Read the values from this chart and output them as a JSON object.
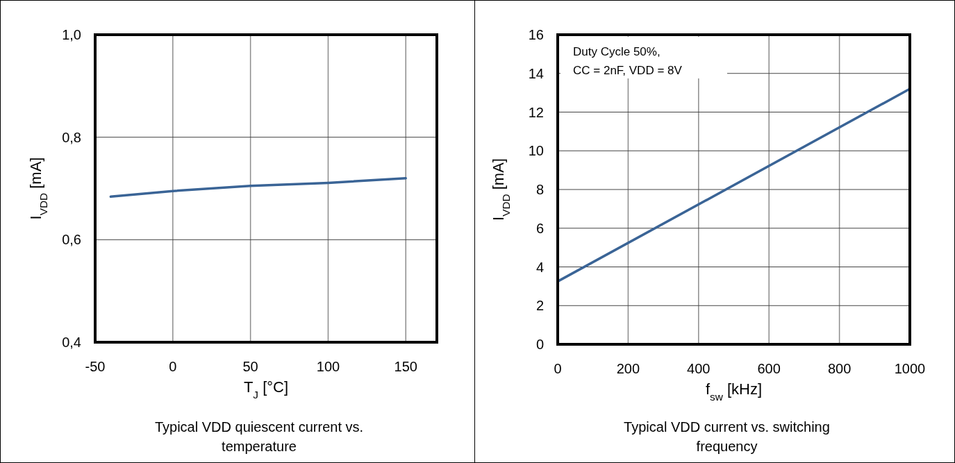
{
  "chart_data": [
    {
      "type": "line",
      "title": "Typical VDD quiescent current vs. temperature",
      "xlabel": "T$_{J}$ [°C]",
      "ylabel": "I$_{VDD}$ [mA]",
      "x": [
        -40,
        0,
        50,
        100,
        150
      ],
      "series": [
        {
          "color": "#3a6496",
          "values": [
            0.684,
            0.695,
            0.705,
            0.711,
            0.72
          ]
        }
      ],
      "xlim": [
        -50,
        170
      ],
      "xticks": [
        -50,
        0,
        50,
        100,
        150
      ],
      "ylim": [
        0.4,
        1.0
      ],
      "yticks": [
        {
          "value": 0.4,
          "label": "0,4"
        },
        {
          "value": 0.6,
          "label": "0,6"
        },
        {
          "value": 0.8,
          "label": "0,8"
        },
        {
          "value": 1.0,
          "label": "1,0"
        }
      ],
      "grid": true,
      "marker": "none",
      "line_style": "solid"
    },
    {
      "type": "line",
      "title": "Typical VDD current vs. switching frequency",
      "xlabel": "f$_{sw}$ [kHz]",
      "ylabel": "I$_{VDD}$ [mA]",
      "annotations": [
        "Duty Cycle 50%,\nCC = 2nF, VDD = 8V"
      ],
      "x": [
        0,
        1000
      ],
      "series": [
        {
          "color": "#3a6496",
          "values": [
            3.25,
            13.2
          ]
        }
      ],
      "xlim": [
        0,
        1000
      ],
      "xticks": [
        0,
        200,
        400,
        600,
        800,
        1000
      ],
      "ylim": [
        0,
        16
      ],
      "yticks": [
        0,
        2,
        4,
        6,
        8,
        10,
        12,
        14,
        16
      ],
      "grid": true,
      "marker": "none",
      "line_style": "solid"
    }
  ]
}
